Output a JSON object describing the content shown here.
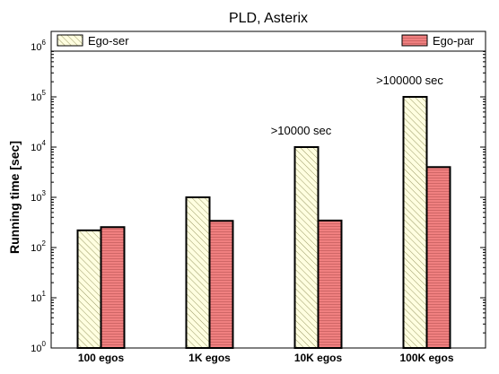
{
  "chart_data": {
    "type": "bar",
    "title": "PLD, Asterix",
    "ylabel": "Running time [sec]",
    "xlabel": "",
    "yscale": "log",
    "ylim": [
      1,
      1000000
    ],
    "y_ticks": [
      {
        "value": 1,
        "base": "10",
        "exp": "0"
      },
      {
        "value": 10,
        "base": "10",
        "exp": "1"
      },
      {
        "value": 100,
        "base": "10",
        "exp": "2"
      },
      {
        "value": 1000,
        "base": "10",
        "exp": "3"
      },
      {
        "value": 10000,
        "base": "10",
        "exp": "4"
      },
      {
        "value": 100000,
        "base": "10",
        "exp": "5"
      },
      {
        "value": 1000000,
        "base": "10",
        "exp": "6"
      }
    ],
    "categories": [
      "100 egos",
      "1K egos",
      "10K egos",
      "100K egos"
    ],
    "series": [
      {
        "name": "Ego-ser",
        "values": [
          220,
          1000,
          10000,
          100000
        ],
        "color": "#fffee0",
        "hatch": "diagonal",
        "hatch_color": "#9a9a66"
      },
      {
        "name": "Ego-par",
        "values": [
          255,
          340,
          345,
          4000
        ],
        "color": "#f08080",
        "hatch": "horizontal",
        "hatch_color": "#c86060"
      }
    ],
    "annotations": [
      {
        "text": ">10000 sec",
        "category": "10K egos",
        "value": 10000
      },
      {
        "text": ">100000 sec",
        "category": "100K egos",
        "value": 100000
      }
    ],
    "legend_position": "top",
    "grid": false
  }
}
